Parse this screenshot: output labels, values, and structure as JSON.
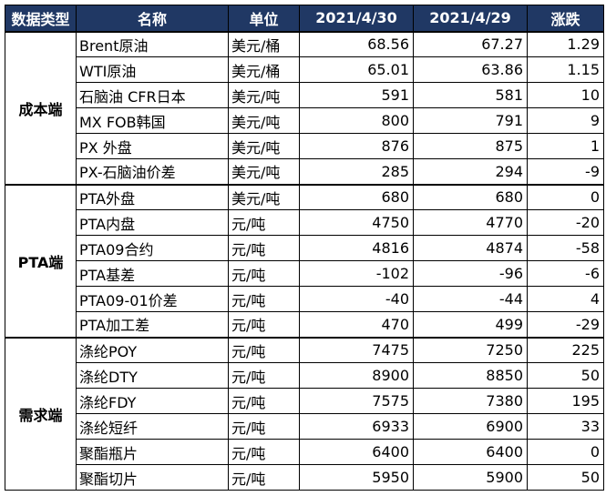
{
  "headers": {
    "category": "数据类型",
    "name": "名称",
    "unit": "单位",
    "date1": "2021/4/30",
    "date2": "2021/4/29",
    "change": "涨跌"
  },
  "groups": [
    {
      "category": "成本端",
      "rows": [
        {
          "name": "Brent原油",
          "unit": "美元/桶",
          "d1": "68.56",
          "d2": "67.27",
          "chg": "1.29"
        },
        {
          "name": "WTI原油",
          "unit": "美元/桶",
          "d1": "65.01",
          "d2": "63.86",
          "chg": "1.15"
        },
        {
          "name": "石脑油 CFR日本",
          "unit": "美元/吨",
          "d1": "591",
          "d2": "581",
          "chg": "10"
        },
        {
          "name": "MX FOB韩国",
          "unit": "美元/吨",
          "d1": "800",
          "d2": "791",
          "chg": "9"
        },
        {
          "name": "PX 外盘",
          "unit": "美元/吨",
          "d1": "876",
          "d2": "875",
          "chg": "1"
        },
        {
          "name": "PX-石脑油价差",
          "unit": "美元/吨",
          "d1": "285",
          "d2": "294",
          "chg": "-9"
        }
      ]
    },
    {
      "category": "PTA端",
      "rows": [
        {
          "name": "PTA外盘",
          "unit": "美元/吨",
          "d1": "680",
          "d2": "680",
          "chg": "0"
        },
        {
          "name": "PTA内盘",
          "unit": "元/吨",
          "d1": "4750",
          "d2": "4770",
          "chg": "-20"
        },
        {
          "name": "PTA09合约",
          "unit": "元/吨",
          "d1": "4816",
          "d2": "4874",
          "chg": "-58"
        },
        {
          "name": "PTA基差",
          "unit": "元/吨",
          "d1": "-102",
          "d2": "-96",
          "chg": "-6"
        },
        {
          "name": "PTA09-01价差",
          "unit": "元/吨",
          "d1": "-40",
          "d2": "-44",
          "chg": "4"
        },
        {
          "name": "PTA加工差",
          "unit": "元/吨",
          "d1": "470",
          "d2": "499",
          "chg": "-29"
        }
      ]
    },
    {
      "category": "需求端",
      "rows": [
        {
          "name": "涤纶POY",
          "unit": "元/吨",
          "d1": "7475",
          "d2": "7250",
          "chg": "225"
        },
        {
          "name": "涤纶DTY",
          "unit": "元/吨",
          "d1": "8900",
          "d2": "8850",
          "chg": "50"
        },
        {
          "name": "涤纶FDY",
          "unit": "元/吨",
          "d1": "7575",
          "d2": "7380",
          "chg": "195"
        },
        {
          "name": "涤纶短纤",
          "unit": "元/吨",
          "d1": "6933",
          "d2": "6900",
          "chg": "33"
        },
        {
          "name": "聚酯瓶片",
          "unit": "元/吨",
          "d1": "6400",
          "d2": "6400",
          "chg": "0"
        },
        {
          "name": "聚酯切片",
          "unit": "元/吨",
          "d1": "5950",
          "d2": "5900",
          "chg": "50"
        }
      ]
    }
  ],
  "colors": {
    "header_bg": "#203864",
    "header_text": "#ffffff",
    "border": "#000000"
  }
}
